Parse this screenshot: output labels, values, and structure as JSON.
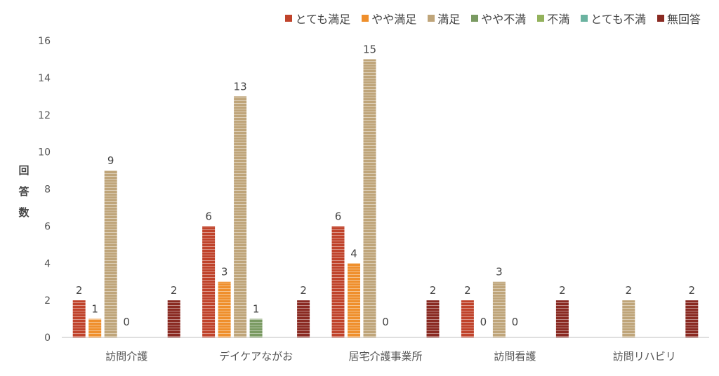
{
  "chart_data": {
    "type": "bar",
    "ylabel": "回答数",
    "ylim": [
      0,
      16
    ],
    "yticks": [
      0,
      2,
      4,
      6,
      8,
      10,
      12,
      14,
      16
    ],
    "categories": [
      "訪問介護",
      "デイケアながお",
      "居宅介護事業所",
      "訪問看護",
      "訪問リハビリ"
    ],
    "series": [
      {
        "name": "とても満足",
        "color": "#c0432b",
        "values": [
          2,
          6,
          6,
          2,
          null
        ]
      },
      {
        "name": "やや満足",
        "color": "#ef8f2c",
        "values": [
          1,
          3,
          4,
          0,
          null
        ]
      },
      {
        "name": "満足",
        "color": "#bfa57a",
        "values": [
          9,
          13,
          15,
          3,
          2
        ]
      },
      {
        "name": "やや不満",
        "color": "#7a9a62",
        "values": [
          0,
          1,
          0,
          0,
          null
        ]
      },
      {
        "name": "不満",
        "color": "#93b25c",
        "values": [
          null,
          null,
          null,
          null,
          null
        ]
      },
      {
        "name": "とても不満",
        "color": "#6bb3a0",
        "values": [
          null,
          null,
          null,
          null,
          null
        ]
      },
      {
        "name": "無回答",
        "color": "#8a2a22",
        "values": [
          2,
          2,
          2,
          2,
          2
        ]
      }
    ],
    "legend_position": "top-right",
    "grid": false
  }
}
